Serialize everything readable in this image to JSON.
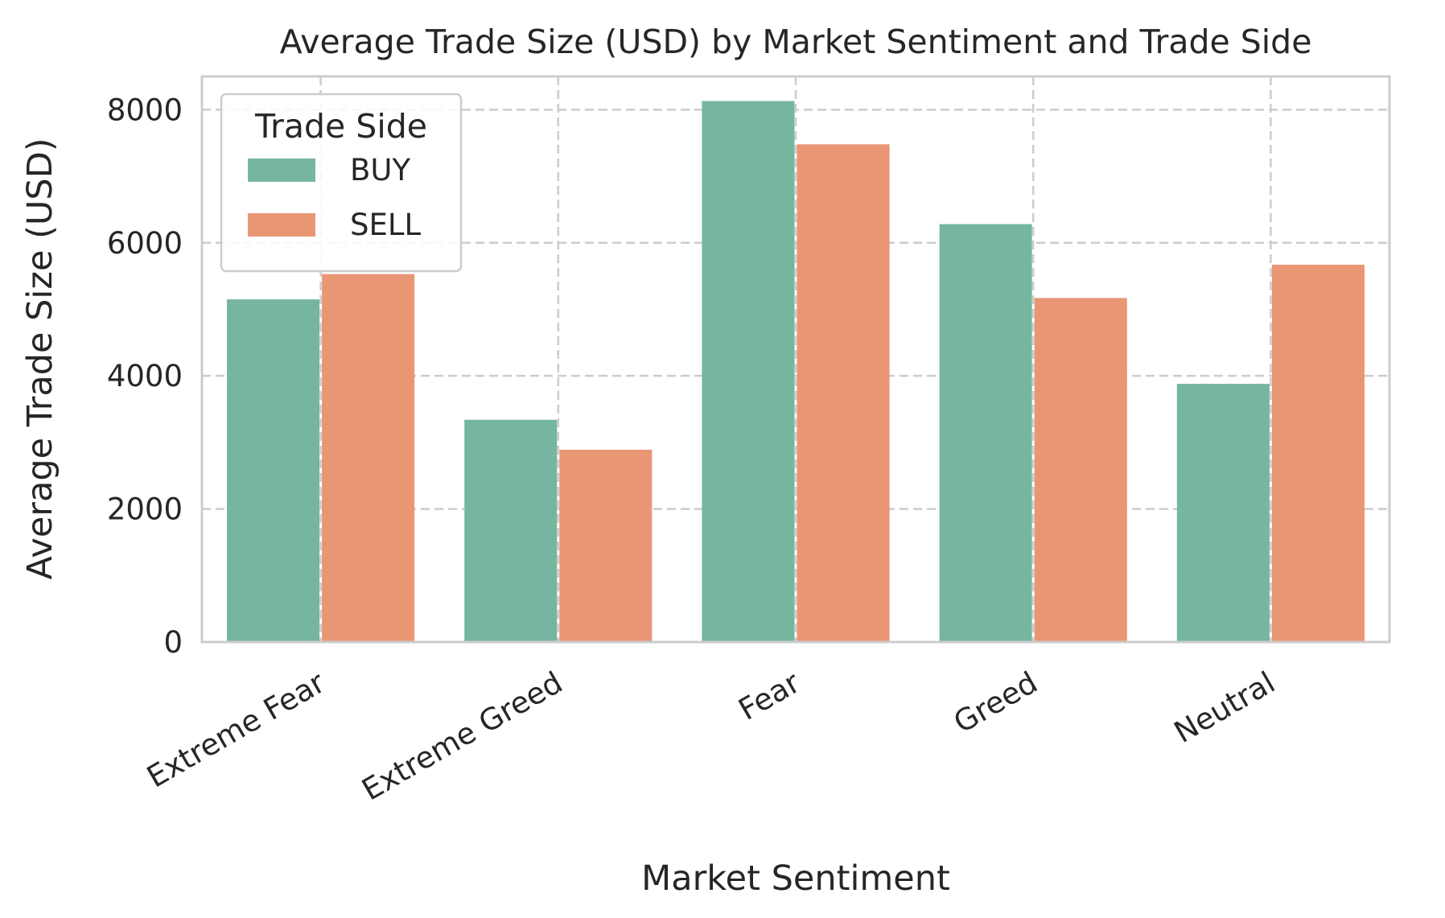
{
  "chart_data": {
    "type": "bar",
    "title": "Average Trade Size (USD) by Market Sentiment and Trade Side",
    "xlabel": "Market Sentiment",
    "ylabel": "Average Trade Size (USD)",
    "categories": [
      "Extreme Fear",
      "Extreme Greed",
      "Fear",
      "Greed",
      "Neutral"
    ],
    "series": [
      {
        "name": "BUY",
        "color": "#76b6a0",
        "values": [
          5150,
          3340,
          8130,
          6280,
          3880
        ]
      },
      {
        "name": "SELL",
        "color": "#e99675",
        "values": [
          5530,
          2890,
          7480,
          5170,
          5670
        ]
      }
    ],
    "ylim": [
      0,
      8500
    ],
    "yticks": [
      0,
      2000,
      4000,
      6000,
      8000
    ],
    "ytick_labels": [
      "0",
      "2000",
      "4000",
      "6000",
      "8000"
    ],
    "grid": true,
    "legend": {
      "title": "Trade Side",
      "placement": "top-left"
    }
  }
}
